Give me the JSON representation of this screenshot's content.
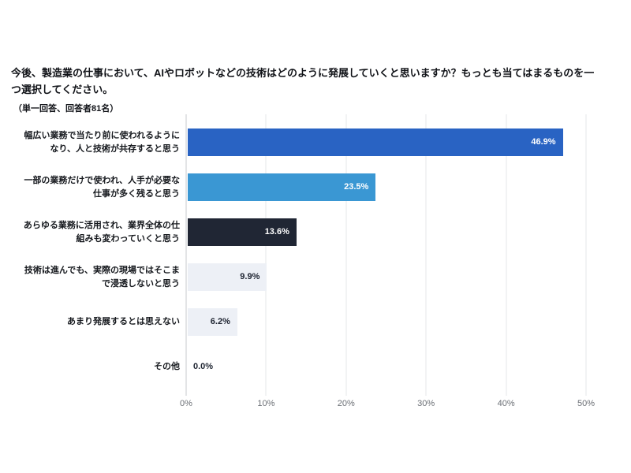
{
  "header": {
    "title": "今後、製造業の仕事において、AIやロボットなどの技術はどのように発展していくと思いますか？もっとも当てはまるものを一つ選択してください。",
    "note": "（単一回答、回答者81名）"
  },
  "chart_data": {
    "type": "bar",
    "orientation": "horizontal",
    "title": "今後、製造業の仕事において、AIやロボットなどの技術はどのように発展していくと思いますか？もっとも当てはまるものを一つ選択してください。",
    "subtitle": "（単一回答、回答者81名）",
    "categories": [
      "幅広い業務で当たり前に使われるようになり、人と技術が共存すると思う",
      "一部の業務だけで使われ、人手が必要な仕事が多く残ると思う",
      "あらゆる業務に活用され、業界全体の仕組みも変わっていくと思う",
      "技術は進んでも、実際の現場ではそこまで浸透しないと思う",
      "あまり発展するとは思えない",
      "その他"
    ],
    "values": [
      46.9,
      23.5,
      13.6,
      9.9,
      6.2,
      0.0
    ],
    "value_labels": [
      "46.9%",
      "23.5%",
      "13.6%",
      "9.9%",
      "6.2%",
      "0.0%"
    ],
    "bar_colors": [
      "#2963c3",
      "#3a97d3",
      "#202634",
      "#edf0f6",
      "#edf0f6",
      "#edf0f6"
    ],
    "value_label_colors": [
      "#ffffff",
      "#ffffff",
      "#ffffff",
      "#1d2330",
      "#1d2330",
      "#1d2330"
    ],
    "xlim": [
      0,
      50
    ],
    "x_tick_values": [
      0,
      10,
      20,
      30,
      40,
      50
    ],
    "x_tick_labels": [
      "0%",
      "10%",
      "20%",
      "30%",
      "40%",
      "50%"
    ],
    "grid": true,
    "legend": false,
    "xlabel": "",
    "ylabel": ""
  },
  "colors": {
    "background": "#ffffff",
    "gridline": "#e5e7ea",
    "axis_line": "#c7cacd",
    "tick_text": "#6b6f75",
    "text": "#15181d"
  }
}
